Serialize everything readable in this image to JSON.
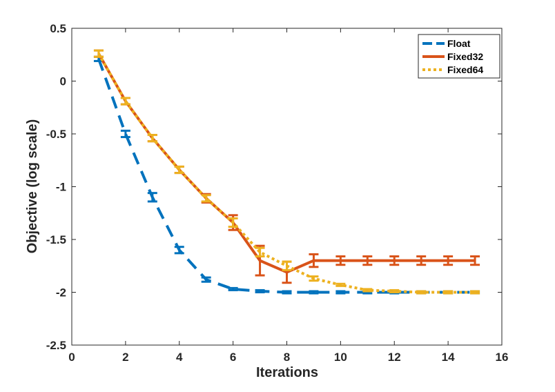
{
  "chart_data": {
    "type": "line",
    "title": "",
    "xlabel": "Iterations",
    "ylabel": "Objective (log scale)",
    "xlim": [
      0,
      16
    ],
    "ylim": [
      -2.5,
      0.5
    ],
    "x_ticks": [
      0,
      2,
      4,
      6,
      8,
      10,
      12,
      14,
      16
    ],
    "x_tick_labels": [
      "0",
      "2",
      "4",
      "6",
      "8",
      "10",
      "12",
      "14",
      "16"
    ],
    "y_ticks": [
      0.5,
      0,
      -0.5,
      -1,
      -1.5,
      -2,
      -2.5
    ],
    "y_tick_labels": [
      "0.5",
      "0",
      "-0.5",
      "-1",
      "-1.5",
      "-2",
      "-2.5"
    ],
    "grid": false,
    "legend_position": "top-right",
    "x": [
      1,
      2,
      3,
      4,
      5,
      6,
      7,
      8,
      9,
      10,
      11,
      12,
      13,
      14,
      15
    ],
    "series": [
      {
        "name": "Float",
        "color": "#0072BD",
        "line_style": "dashed",
        "values": [
          0.21,
          -0.5,
          -1.1,
          -1.6,
          -1.88,
          -1.97,
          -1.99,
          -2.0,
          -2.0,
          -2.0,
          -2.0,
          -2.0,
          -2.0,
          -2.0,
          -2.0
        ],
        "errors": [
          0.02,
          0.03,
          0.04,
          0.03,
          0.02,
          0.01,
          0.01,
          0.01,
          0.01,
          0.01,
          0.01,
          0.01,
          0.01,
          0.01,
          0.01
        ]
      },
      {
        "name": "Fixed32",
        "color": "#D95319",
        "line_style": "solid",
        "values": [
          0.26,
          -0.19,
          -0.54,
          -0.84,
          -1.11,
          -1.34,
          -1.7,
          -1.81,
          -1.7,
          -1.7,
          -1.7,
          -1.7,
          -1.7,
          -1.7,
          -1.7
        ],
        "errors": [
          0.03,
          0.03,
          0.03,
          0.03,
          0.04,
          0.07,
          0.14,
          0.1,
          0.06,
          0.04,
          0.04,
          0.04,
          0.04,
          0.04,
          0.04
        ]
      },
      {
        "name": "Fixed64",
        "color": "#EDB120",
        "line_style": "dotted",
        "values": [
          0.26,
          -0.19,
          -0.54,
          -0.84,
          -1.11,
          -1.34,
          -1.62,
          -1.75,
          -1.87,
          -1.93,
          -1.98,
          -1.99,
          -2.0,
          -2.0,
          -2.0
        ],
        "errors": [
          0.03,
          0.03,
          0.03,
          0.03,
          0.03,
          0.04,
          0.04,
          0.04,
          0.02,
          0.01,
          0.01,
          0.01,
          0.01,
          0.01,
          0.01
        ]
      }
    ]
  }
}
